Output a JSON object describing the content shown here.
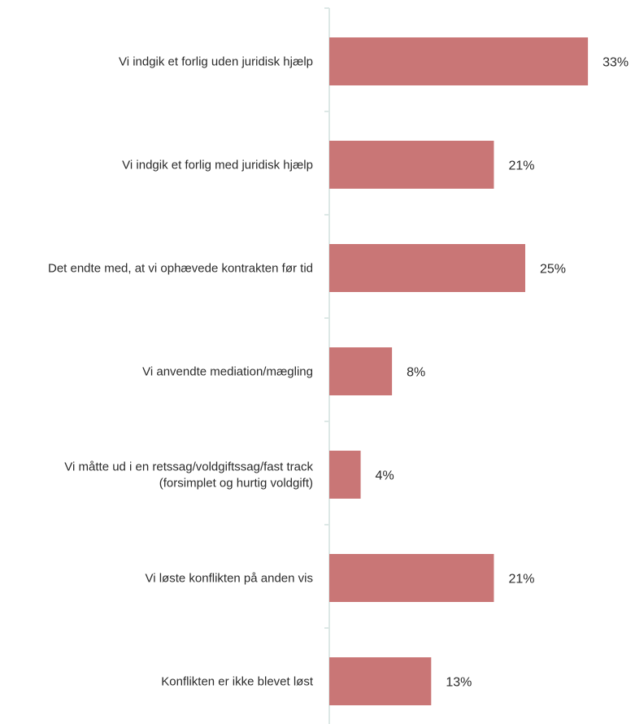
{
  "chart_data": {
    "type": "bar",
    "orientation": "horizontal",
    "categories": [
      [
        "Vi indgik et forlig uden juridisk hjælp"
      ],
      [
        "Vi indgik et forlig med juridisk hjælp"
      ],
      [
        "Det endte med, at vi ophævede kontrakten før tid"
      ],
      [
        "Vi anvendte mediation/mægling"
      ],
      [
        "Vi måtte ud i en retssag/voldgiftssag/fast track",
        "(forsimplet og hurtig voldgift)"
      ],
      [
        "Vi løste konflikten på anden vis"
      ],
      [
        "Konflikten er ikke blevet løst"
      ]
    ],
    "values": [
      33,
      21,
      25,
      8,
      4,
      21,
      13
    ],
    "value_labels": [
      "33%",
      "21%",
      "25%",
      "8%",
      "4%",
      "21%",
      "13%"
    ],
    "xlim": [
      0,
      40
    ],
    "grid": false,
    "legend": "none",
    "bar_color": "#c97676",
    "axis_color": "#dde8e6"
  }
}
